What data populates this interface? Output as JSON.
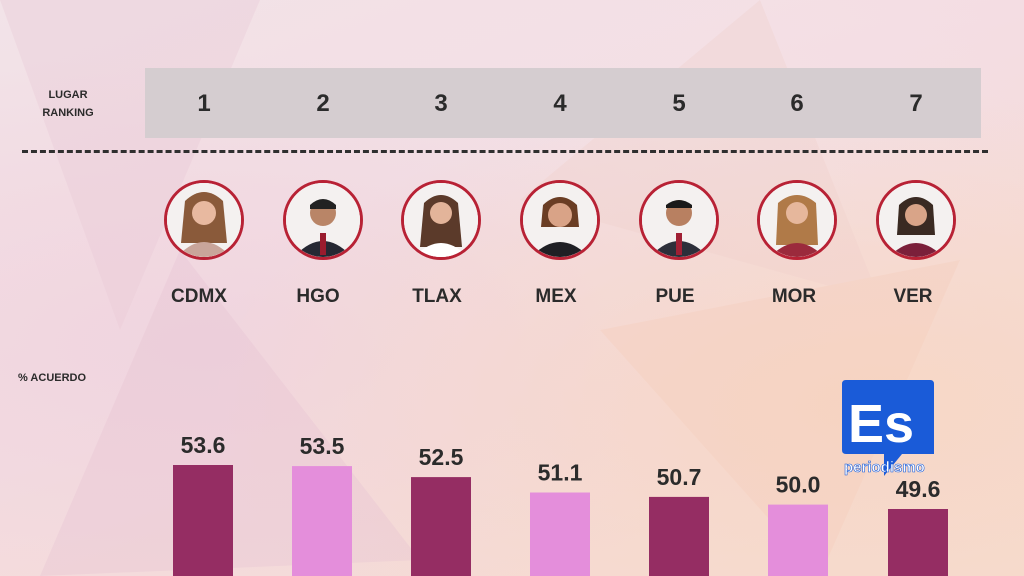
{
  "header": {
    "rank_label_line1": "LUGAR",
    "rank_label_line2": "RANKING",
    "metric_label": "% ACUERDO"
  },
  "ranking": [
    {
      "rank": "1",
      "state": "CDMX",
      "value": 53.6,
      "bar_color": "#952d63"
    },
    {
      "rank": "2",
      "state": "HGO",
      "value": 53.5,
      "bar_color": "#e48edb"
    },
    {
      "rank": "3",
      "state": "TLAX",
      "value": 52.5,
      "bar_color": "#952d63"
    },
    {
      "rank": "4",
      "state": "MEX",
      "value": 51.1,
      "bar_color": "#e48edb"
    },
    {
      "rank": "5",
      "state": "PUE",
      "value": 50.7,
      "bar_color": "#952d63"
    },
    {
      "rank": "6",
      "state": "MOR",
      "value": 50.0,
      "bar_color": "#e48edb"
    },
    {
      "rank": "7",
      "state": "VER",
      "value": 49.6,
      "bar_color": "#952d63"
    }
  ],
  "chart_data": {
    "type": "bar",
    "categories": [
      "CDMX",
      "HGO",
      "TLAX",
      "MEX",
      "PUE",
      "MOR",
      "VER"
    ],
    "values": [
      53.6,
      53.5,
      52.5,
      51.1,
      50.7,
      50.0,
      49.6
    ],
    "value_labels": [
      "53.6",
      "53.5",
      "52.5",
      "51.1",
      "50.7",
      "50.0",
      "49.6"
    ],
    "title": "",
    "ylabel": "% ACUERDO",
    "xlabel": "",
    "grid": false,
    "colors": [
      "#952d63",
      "#e48edb"
    ]
  },
  "logo": {
    "main": "Es",
    "sub": "periodismo",
    "color": "#1a5bd8"
  }
}
